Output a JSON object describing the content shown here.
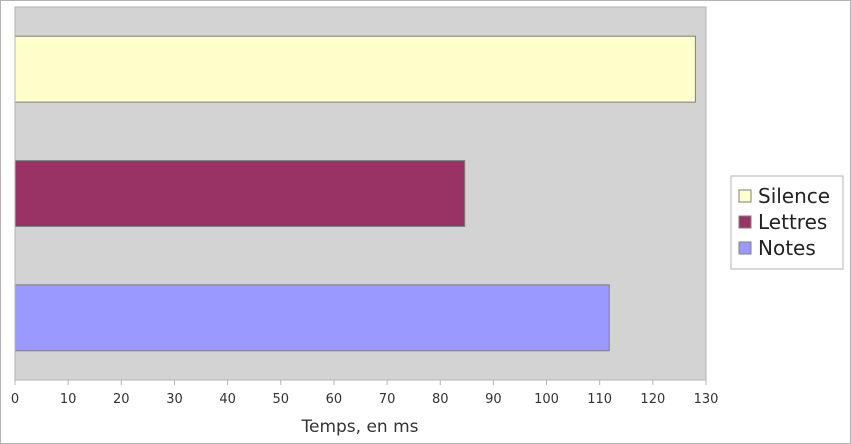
{
  "chart_data": {
    "type": "bar",
    "orientation": "horizontal",
    "title": "",
    "xlabel": "Temps, en ms",
    "ylabel": "",
    "xlim": [
      0,
      130
    ],
    "ticks": [
      "0",
      "10",
      "20",
      "30",
      "40",
      "50",
      "60",
      "70",
      "80",
      "90",
      "100",
      "110",
      "120",
      "130"
    ],
    "grid": false,
    "plot_background": "#d3d3d3",
    "legend_position": "right",
    "series": [
      {
        "name": "Silence",
        "value": 128,
        "color": "#ffffcc"
      },
      {
        "name": "Lettres",
        "value": 84.6,
        "color": "#993366"
      },
      {
        "name": "Notes",
        "value": 111.8,
        "color": "#9999ff"
      }
    ]
  }
}
